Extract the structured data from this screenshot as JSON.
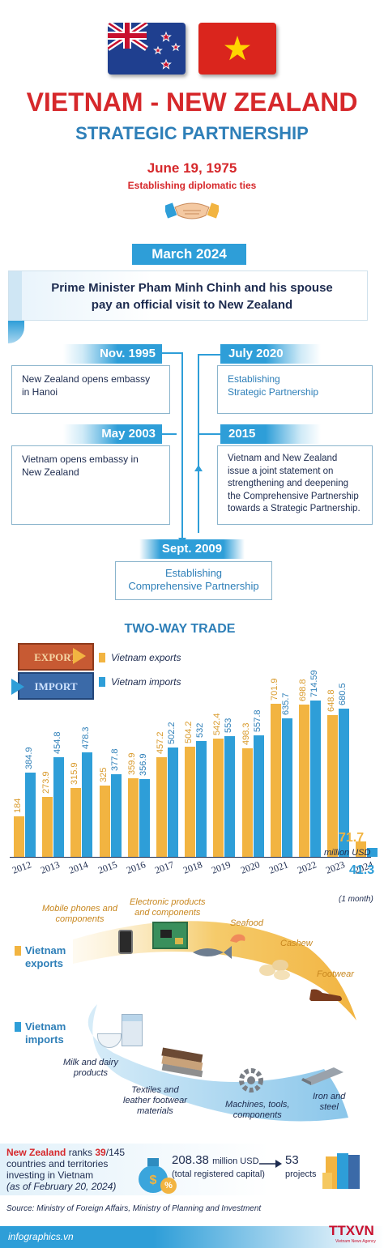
{
  "header": {
    "title": "VIETNAM - NEW ZEALAND",
    "subtitle": "STRATEGIC PARTNERSHIP",
    "est_date": "June 19, 1975",
    "est_text": "Establishing diplomatic ties"
  },
  "visit": {
    "date": "March 2024",
    "text_line1": "Prime Minister Pham Minh Chinh and his spouse",
    "text_line2": "pay an official visit to New Zealand"
  },
  "timeline": {
    "nov1995": {
      "date": "Nov. 1995",
      "line1": "New Zealand opens embassy",
      "line2": "in Hanoi"
    },
    "may2003": {
      "date": "May 2003",
      "line1": "Vietnam opens embassy in",
      "line2": "New Zealand"
    },
    "jul2020": {
      "date": "July 2020",
      "line1": "Establishing",
      "line2": "Strategic Partnership"
    },
    "y2015": {
      "date": "2015",
      "line1": "Vietnam and New Zealand",
      "line2": "issue a joint statement on",
      "line3": "strengthening and deepening",
      "line4": "the Comprehensive Partnership",
      "line5": "towards a Strategic Partnership."
    },
    "sep2009": {
      "date": "Sept. 2009",
      "line1": "Establishing",
      "line2": "Comprehensive Partnership"
    }
  },
  "trade": {
    "title": "TWO-WAY TRADE",
    "crate_export": "EXPORT",
    "crate_import": "IMPORT",
    "legend_exports": "Vietnam exports",
    "legend_imports": "Vietnam imports",
    "unit_value": "71.7",
    "unit_text": "million USD",
    "last_import": "41.3",
    "last_note": "(1 month)"
  },
  "chart_data": {
    "type": "bar",
    "categories": [
      "2012",
      "2013",
      "2014",
      "2015",
      "2016",
      "2017",
      "2018",
      "2019",
      "2020",
      "2021",
      "2022",
      "2023",
      "2024"
    ],
    "series": [
      {
        "name": "Vietnam exports",
        "values": [
          184,
          273.9,
          315.9,
          325,
          359.9,
          457.2,
          504.2,
          542.4,
          498.3,
          701.9,
          698.8,
          648.8,
          71.7
        ],
        "labels": [
          "184",
          "273.9",
          "315.9",
          "325",
          "359.9",
          "457.2",
          "504.2",
          "542.4",
          "498.3",
          "701.9",
          "698.8",
          "648.8",
          "71.7"
        ],
        "color": "#f2b441"
      },
      {
        "name": "Vietnam imports",
        "values": [
          384.9,
          454.8,
          478.3,
          377.8,
          356.9,
          502.2,
          532,
          553,
          557.8,
          635.7,
          714.59,
          680.5,
          41.3
        ],
        "labels": [
          "384.9",
          "454.8",
          "478.3",
          "377.8",
          "356.9",
          "502.2",
          "532",
          "553",
          "557.8",
          "635.7",
          "714.59",
          "680.5",
          "41.3"
        ],
        "color": "#2e9ed8"
      }
    ],
    "ylim": [
      0,
      720
    ]
  },
  "goods": {
    "exports_label_1": "Vietnam",
    "exports_label_2": "exports",
    "imports_label_1": "Vietnam",
    "imports_label_2": "imports",
    "mobile_1": "Mobile phones and",
    "mobile_2": "components",
    "electronic_1": "Electronic products",
    "electronic_2": "and components",
    "seafood": "Seafood",
    "cashew": "Cashew",
    "footwear": "Footwear",
    "milk_1": "Milk and dairy",
    "milk_2": "products",
    "textiles_1": "Textiles and",
    "textiles_2": "leather footwear",
    "textiles_3": "materials",
    "machines_1": "Machines, tools,",
    "machines_2": "components",
    "iron_1": "Iron and",
    "iron_2": "steel"
  },
  "investment": {
    "nz": "New Zealand",
    "ranks": " ranks ",
    "rank": "39",
    "total": "/145",
    "line2": "countries and territories",
    "line3": "investing in Vietnam",
    "line4": "(as of February 20, 2024)",
    "capital_value": "208.38",
    "capital_unit": "million USD",
    "capital_note": "(total registered capital)",
    "projects_value": "53",
    "projects_text": "projects"
  },
  "footer": {
    "source": "Source: Ministry of Foreign Affairs, Ministry of Planning and Investment",
    "site": "infographics.vn",
    "logo": "TTXVN",
    "logo_sub": "Vietnam News Agency"
  },
  "colors": {
    "red": "#d6282b",
    "blue": "#2e9ed8",
    "navy": "#1d2b4f",
    "gold": "#f2b441"
  }
}
